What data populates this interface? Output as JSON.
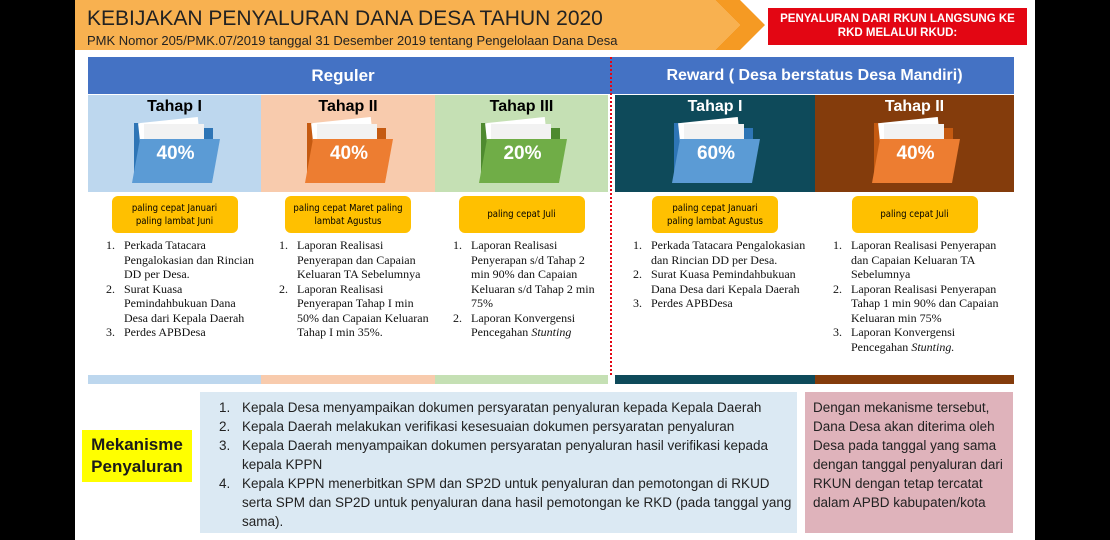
{
  "header": {
    "title": "KEBIJAKAN PENYALURAN DANA DESA TAHUN 2020",
    "subtitle": "PMK Nomor 205/PMK.07/2019 tanggal 31 Desember 2019 tentang Pengelolaan Dana Desa",
    "callout": "PENYALURAN DARI RKUN LANGSUNG KE RKD MELALUI RKUD:"
  },
  "groups": [
    "Reguler",
    "Reward ( Desa berstatus Desa Mandiri)"
  ],
  "stages": [
    {
      "label": "Tahap I",
      "percent": "40%",
      "timing": "paling cepat Januari paling lambat Juni",
      "items": [
        "Perkada Tatacara Pengalokasian dan Rincian DD per Desa.",
        "Surat Kuasa Pemindahbukuan Dana Desa dari Kepala Daerah",
        "Perdes APBDesa"
      ]
    },
    {
      "label": "Tahap II",
      "percent": "40%",
      "timing": "paling cepat Maret paling lambat Agustus",
      "items": [
        "Laporan Realisasi Penyerapan dan Capaian Keluaran TA Sebelumnya",
        "Laporan Realisasi Penyerapan Tahap I min 50% dan Capaian Keluaran Tahap I min 35%."
      ]
    },
    {
      "label": "Tahap III",
      "percent": "20%",
      "timing": "paling cepat Juli",
      "items": [
        "Laporan Realisasi Penyerapan s/d Tahap 2 min 90% dan Capaian Keluaran s/d Tahap 2 min 75%",
        {
          "text": "Laporan Konvergensi Pencegahan",
          "em": "Stunting"
        }
      ]
    },
    {
      "label": "Tahap I",
      "percent": "60%",
      "timing": "paling cepat Januari paling lambat Agustus",
      "items": [
        "Perkada Tatacara Pengalokasian dan Rincian DD per Desa.",
        "Surat Kuasa Pemindahbukuan Dana Desa dari Kepala Daerah",
        "Perdes APBDesa"
      ]
    },
    {
      "label": "Tahap II",
      "percent": "40%",
      "timing": "paling cepat Juli",
      "items": [
        "Laporan Realisasi Penyerapan dan Capaian Keluaran TA Sebelumnya",
        "Laporan Realisasi Penyerapan Tahap 1 min 90% dan Capaian Keluaran min 75%",
        {
          "text": "Laporan Konvergensi Pencegahan",
          "em": "Stunting."
        }
      ]
    }
  ],
  "mechanism": {
    "label": "Mekanisme Penyaluran",
    "steps": [
      "Kepala Desa menyampaikan dokumen persyaratan penyaluran kepada Kepala Daerah",
      "Kepala Daerah melakukan verifikasi kesesuaian dokumen persyaratan penyaluran",
      "Kepala Daerah menyampaikan dokumen persyaratan penyaluran hasil verifikasi kepada kepala KPPN",
      "Kepala KPPN menerbitkan SPM dan SP2D untuk penyaluran dan pemotongan di RKUD serta SPM dan SP2D untuk penyaluran dana hasil pemotongan ke RKD (pada tanggal yang sama)."
    ],
    "note": "Dengan mekanisme tersebut, Dana Desa akan diterima oleh Desa pada tanggal yang sama dengan tanggal penyaluran dari RKUN dengan tetap tercatat dalam APBD kabupaten/kota"
  }
}
